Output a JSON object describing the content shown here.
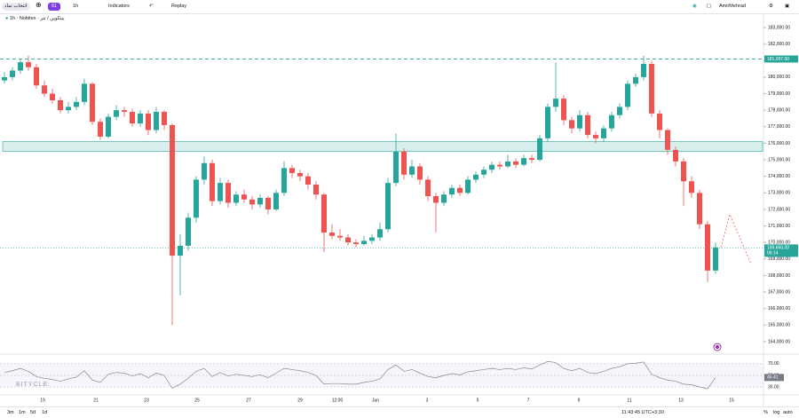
{
  "toolbar": {
    "symbol_search": "انتخاب نماد",
    "alerts": "61",
    "interval": "1h",
    "indicators": "Indicators",
    "replay": "Replay",
    "user": "AmirMehrad"
  },
  "legend": "بیتکوین / تتر · 1h · Nobitex",
  "watermark": "BITYCLE",
  "chart_data": [
    {
      "type": "candlestick",
      "up_color": "#26a69a",
      "down_color": "#ef5350",
      "candles": [
        [
          179800,
          180300,
          179600,
          180000
        ],
        [
          180000,
          180600,
          179800,
          180400
        ],
        [
          180400,
          181100,
          180200,
          180900
        ],
        [
          180900,
          181300,
          180400,
          180600
        ],
        [
          180600,
          180800,
          179300,
          179500
        ],
        [
          179500,
          179800,
          178800,
          179000
        ],
        [
          179000,
          179300,
          178400,
          178600
        ],
        [
          178600,
          178800,
          177800,
          178000
        ],
        [
          178000,
          178500,
          177800,
          178200
        ],
        [
          178200,
          178800,
          178000,
          178500
        ],
        [
          178500,
          179900,
          178300,
          179600
        ],
        [
          179600,
          179700,
          177100,
          177300
        ],
        [
          177300,
          177500,
          176200,
          176400
        ],
        [
          176400,
          177800,
          176300,
          177600
        ],
        [
          177600,
          178300,
          177400,
          178000
        ],
        [
          178000,
          178200,
          177600,
          177900
        ],
        [
          177900,
          178100,
          177000,
          177200
        ],
        [
          177200,
          178000,
          177000,
          177800
        ],
        [
          177800,
          178000,
          176500,
          176800
        ],
        [
          176800,
          178200,
          176600,
          177900
        ],
        [
          177900,
          178000,
          176800,
          177100
        ],
        [
          177100,
          177200,
          165000,
          169200
        ],
        [
          169200,
          170500,
          166800,
          169800
        ],
        [
          169800,
          171800,
          169500,
          171500
        ],
        [
          171500,
          174000,
          171200,
          173800
        ],
        [
          173800,
          175200,
          173500,
          174800
        ],
        [
          174800,
          175000,
          172200,
          172500
        ],
        [
          172500,
          173900,
          172300,
          173600
        ],
        [
          173600,
          173800,
          172100,
          172400
        ],
        [
          172400,
          173100,
          172200,
          172900
        ],
        [
          172900,
          173200,
          172400,
          172600
        ],
        [
          172600,
          172800,
          172000,
          172300
        ],
        [
          172300,
          172900,
          172100,
          172700
        ],
        [
          172700,
          172800,
          171700,
          172000
        ],
        [
          172000,
          173200,
          171900,
          173000
        ],
        [
          173000,
          174900,
          172800,
          174500
        ],
        [
          174500,
          174700,
          173900,
          174200
        ],
        [
          174200,
          174400,
          173700,
          174000
        ],
        [
          174000,
          174200,
          173200,
          173500
        ],
        [
          173500,
          173700,
          172600,
          172900
        ],
        [
          172900,
          173000,
          169400,
          170600
        ],
        [
          170600,
          171100,
          170200,
          170400
        ],
        [
          170400,
          170800,
          170100,
          170300
        ],
        [
          170300,
          170500,
          169800,
          170000
        ],
        [
          170000,
          170200,
          169700,
          169900
        ],
        [
          169900,
          170400,
          169800,
          170100
        ],
        [
          170100,
          170500,
          169900,
          170300
        ],
        [
          170300,
          171200,
          170100,
          170800
        ],
        [
          170800,
          173900,
          170600,
          173600
        ],
        [
          173600,
          176600,
          173400,
          175500
        ],
        [
          175500,
          175700,
          173800,
          174100
        ],
        [
          174100,
          175000,
          173900,
          174600
        ],
        [
          174600,
          174800,
          173500,
          173800
        ],
        [
          173800,
          174000,
          172500,
          172800
        ],
        [
          172800,
          173000,
          170600,
          172400
        ],
        [
          172400,
          173100,
          172200,
          172900
        ],
        [
          172900,
          173500,
          172700,
          173300
        ],
        [
          173300,
          173500,
          172800,
          173000
        ],
        [
          173000,
          174000,
          172900,
          173800
        ],
        [
          173800,
          174300,
          173600,
          174100
        ],
        [
          174100,
          174600,
          173900,
          174400
        ],
        [
          174400,
          174900,
          174200,
          174700
        ],
        [
          174700,
          174900,
          174400,
          174600
        ],
        [
          174600,
          175300,
          174500,
          174900
        ],
        [
          174900,
          175100,
          174500,
          174700
        ],
        [
          174700,
          175300,
          174600,
          175100
        ],
        [
          175100,
          175300,
          174800,
          175000
        ],
        [
          175000,
          176500,
          174900,
          176300
        ],
        [
          176300,
          178400,
          176100,
          178200
        ],
        [
          178200,
          180900,
          177900,
          178700
        ],
        [
          178700,
          178900,
          177100,
          177400
        ],
        [
          177400,
          177600,
          176600,
          176900
        ],
        [
          176900,
          178000,
          176700,
          177700
        ],
        [
          177700,
          177900,
          176300,
          176500
        ],
        [
          176500,
          176700,
          176000,
          176300
        ],
        [
          176300,
          177100,
          176100,
          176900
        ],
        [
          176900,
          177900,
          176700,
          177700
        ],
        [
          177700,
          178400,
          177500,
          178200
        ],
        [
          178200,
          179800,
          178000,
          179600
        ],
        [
          179600,
          180200,
          179400,
          180000
        ],
        [
          180000,
          181300,
          179800,
          180800
        ],
        [
          180800,
          181000,
          177600,
          177800
        ],
        [
          177800,
          178000,
          176300,
          176800
        ],
        [
          176800,
          176900,
          175300,
          175600
        ],
        [
          175600,
          175800,
          174600,
          174900
        ],
        [
          174900,
          175100,
          172200,
          173700
        ],
        [
          173700,
          174000,
          172700,
          173000
        ],
        [
          173000,
          173200,
          170800,
          171100
        ],
        [
          171100,
          171300,
          167600,
          168300
        ],
        [
          168300,
          170000,
          168100,
          169700
        ]
      ],
      "ylim": [
        163300,
        183700
      ],
      "yticks": [
        {
          "value": 164000,
          "label": "164,000.00"
        },
        {
          "value": 165000,
          "label": "165,000.00"
        },
        {
          "value": 166000,
          "label": "166,000.00"
        },
        {
          "value": 167000,
          "label": "167,000.00"
        },
        {
          "value": 168000,
          "label": "168,000.00"
        },
        {
          "value": 169000,
          "label": "169,000.00"
        },
        {
          "value": 170000,
          "label": "170,000.00"
        },
        {
          "value": 171000,
          "label": "171,000.00"
        },
        {
          "value": 172000,
          "label": "172,000.00"
        },
        {
          "value": 173000,
          "label": "173,000.00"
        },
        {
          "value": 174000,
          "label": "174,000.00"
        },
        {
          "value": 175000,
          "label": "175,000.00"
        },
        {
          "value": 176000,
          "label": "176,000.00"
        },
        {
          "value": 177000,
          "label": "177,000.00"
        },
        {
          "value": 178000,
          "label": "178,000.00"
        },
        {
          "value": 179000,
          "label": "179,000.00"
        },
        {
          "value": 180000,
          "label": "180,000.00"
        },
        {
          "value": 181000,
          "label": "181,000.00"
        },
        {
          "value": 182000,
          "label": "182,000.00"
        },
        {
          "value": 183000,
          "label": "183,000.00"
        }
      ],
      "x_labels": [
        "19",
        "21",
        "23",
        "25",
        "27",
        "29",
        "12:00",
        "Jun",
        "3",
        "5",
        "7",
        "9",
        "11",
        "13",
        "15"
      ],
      "level": {
        "value": 181097,
        "label": "181,097.00",
        "color": "#26a69a"
      },
      "price_line": {
        "value": 169666,
        "label": "169,666.00",
        "countdown": "06:14"
      },
      "zone": [
        175500,
        176100
      ],
      "projection": [
        169700,
        171700,
        168700
      ]
    },
    {
      "type": "line",
      "color": "#8a8a8a",
      "values": [
        55,
        58,
        62,
        57,
        48,
        45,
        43,
        40,
        44,
        47,
        58,
        42,
        38,
        52,
        55,
        54,
        49,
        53,
        46,
        54,
        50,
        28,
        35,
        45,
        57,
        62,
        48,
        55,
        49,
        52,
        50,
        48,
        51,
        46,
        54,
        62,
        60,
        58,
        55,
        50,
        35,
        36,
        36,
        35,
        35,
        38,
        40,
        44,
        60,
        68,
        57,
        60,
        54,
        48,
        46,
        50,
        53,
        51,
        56,
        58,
        60,
        62,
        60,
        62,
        60,
        63,
        61,
        68,
        74,
        72,
        62,
        58,
        62,
        55,
        53,
        57,
        62,
        65,
        70,
        71,
        73,
        52,
        46,
        42,
        40,
        35,
        34,
        30,
        27,
        46.41
      ],
      "value_labels": {
        "89": "46.41"
      },
      "ylim": [
        18,
        82
      ],
      "yticks": [
        {
          "value": 70,
          "label": "70.00"
        },
        {
          "value": 50,
          "label": "50.00"
        },
        {
          "value": 30,
          "label": "30.00"
        }
      ]
    }
  ],
  "bottom_bar": {
    "ranges": [
      "3m",
      "1m",
      "5d",
      "1d"
    ],
    "clock": "11:43:45 UTC+3:30",
    "options": [
      "%",
      "log",
      "auto"
    ]
  }
}
